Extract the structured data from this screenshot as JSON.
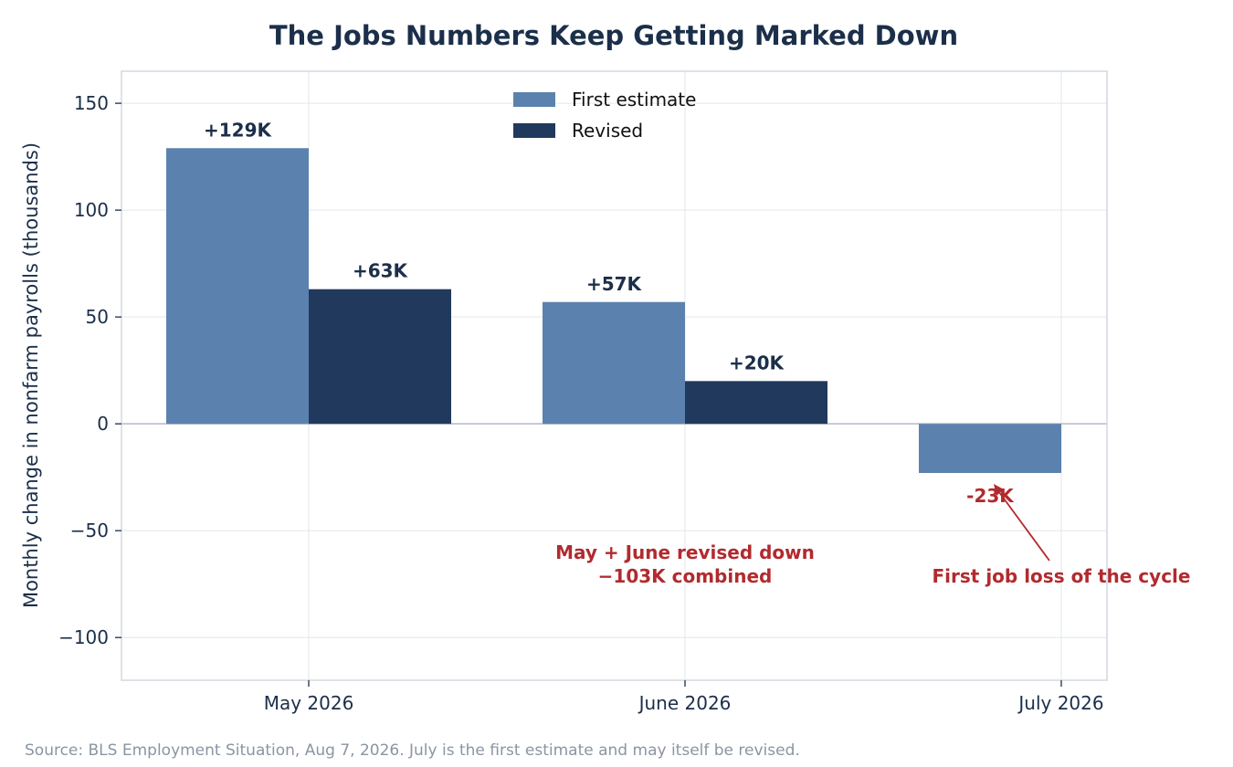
{
  "chart_data": {
    "type": "bar",
    "title": "The Jobs Numbers Keep Getting Marked Down",
    "ylabel": "Monthly change in nonfarm payrolls (thousands)",
    "xlabel": "",
    "categories": [
      "May 2026",
      "June 2026",
      "July 2026"
    ],
    "series": [
      {
        "name": "First estimate",
        "color": "#5b82ae",
        "values": [
          129,
          57,
          -23
        ],
        "labels": [
          "+129K",
          "+57K",
          "-23K"
        ]
      },
      {
        "name": "Revised",
        "color": "#21395c",
        "values": [
          63,
          20,
          null
        ],
        "labels": [
          "+63K",
          "+20K",
          null
        ]
      }
    ],
    "ylim": [
      -120,
      165
    ],
    "yticks": [
      150,
      100,
      50,
      0,
      -50,
      -100
    ],
    "ytick_labels": [
      "150",
      "100",
      "50",
      "0",
      "−50",
      "−100"
    ],
    "grid": true,
    "legend_position": "top-center",
    "annotations": [
      {
        "lines": [
          "May + June revised down",
          "−103K combined"
        ],
        "color": "#b22a2e"
      },
      {
        "lines": [
          "First job loss of the cycle"
        ],
        "color": "#b22a2e",
        "arrow_to": {
          "category": "July 2026",
          "value": -23
        }
      }
    ],
    "source": "Source: BLS Employment Situation, Aug 7, 2026. July is the first estimate and may itself be revised."
  }
}
